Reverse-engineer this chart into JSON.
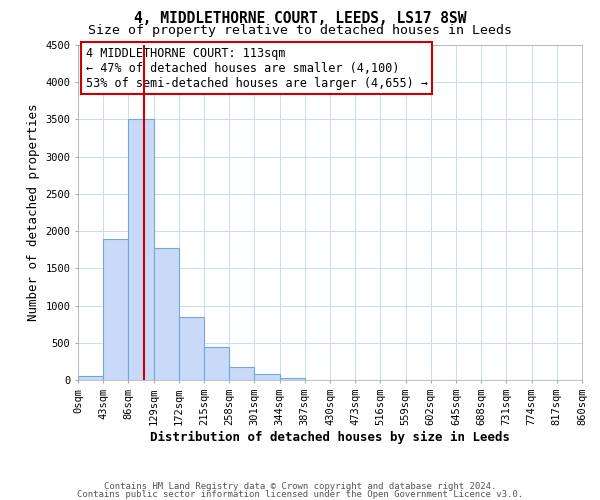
{
  "title": "4, MIDDLETHORNE COURT, LEEDS, LS17 8SW",
  "subtitle": "Size of property relative to detached houses in Leeds",
  "xlabel": "Distribution of detached houses by size in Leeds",
  "ylabel": "Number of detached properties",
  "bin_edges": [
    0,
    43,
    86,
    129,
    172,
    215,
    258,
    301,
    344,
    387,
    430,
    473,
    516,
    559,
    602,
    645,
    688,
    731,
    774,
    817,
    860
  ],
  "bin_counts": [
    50,
    1900,
    3500,
    1775,
    850,
    450,
    175,
    75,
    30,
    0,
    0,
    0,
    0,
    0,
    0,
    0,
    0,
    0,
    0,
    0
  ],
  "bar_color": "#c9daf8",
  "bar_edge_color": "#6fa8dc",
  "vline_color": "#cc0000",
  "vline_x": 113,
  "annotation_text": "4 MIDDLETHORNE COURT: 113sqm\n← 47% of detached houses are smaller (4,100)\n53% of semi-detached houses are larger (4,655) →",
  "annotation_box_color": "#ffffff",
  "annotation_box_edge_color": "#cc0000",
  "ylim": [
    0,
    4500
  ],
  "yticks": [
    0,
    500,
    1000,
    1500,
    2000,
    2500,
    3000,
    3500,
    4000,
    4500
  ],
  "xtick_labels": [
    "0sqm",
    "43sqm",
    "86sqm",
    "129sqm",
    "172sqm",
    "215sqm",
    "258sqm",
    "301sqm",
    "344sqm",
    "387sqm",
    "430sqm",
    "473sqm",
    "516sqm",
    "559sqm",
    "602sqm",
    "645sqm",
    "688sqm",
    "731sqm",
    "774sqm",
    "817sqm",
    "860sqm"
  ],
  "footer_line1": "Contains HM Land Registry data © Crown copyright and database right 2024.",
  "footer_line2": "Contains public sector information licensed under the Open Government Licence v3.0.",
  "background_color": "#ffffff",
  "grid_color": "#c9daf8",
  "title_fontsize": 10.5,
  "subtitle_fontsize": 9.5,
  "axis_label_fontsize": 9,
  "tick_fontsize": 7.5,
  "annotation_fontsize": 8.5,
  "footer_fontsize": 6.5
}
